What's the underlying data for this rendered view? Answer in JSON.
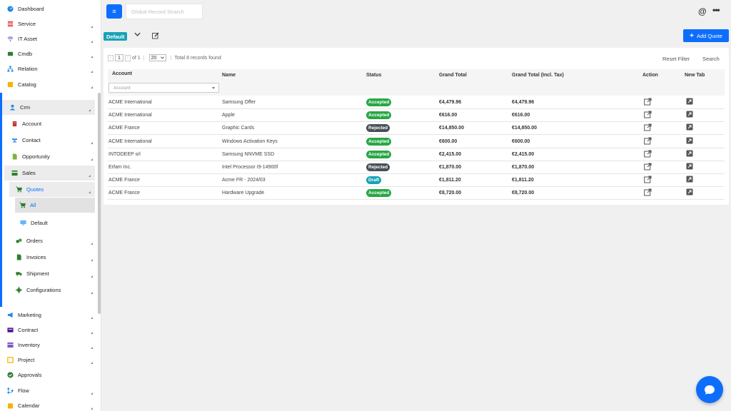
{
  "sidebar": {
    "items": [
      {
        "label": "Dashboard",
        "icon": "dashboard-icon",
        "color": "#1e88e5"
      },
      {
        "label": "Service",
        "icon": "service-icon",
        "color": "#e53935"
      },
      {
        "label": "IT Asset",
        "icon": "wifi-icon",
        "color": "#7e57c2"
      },
      {
        "label": "Cmdb",
        "icon": "cmdb-icon",
        "color": "#2e7d32"
      },
      {
        "label": "Relation",
        "icon": "sitemap-icon",
        "color": "#1e88e5"
      },
      {
        "label": "Catalog",
        "icon": "catalog-icon",
        "color": "#f4b400"
      },
      {
        "label": "Crm",
        "icon": "user-icon",
        "color": "#1e88e5"
      },
      {
        "label": "Account",
        "icon": "account-icon",
        "color": "#c0392b"
      },
      {
        "label": "Contact",
        "icon": "users-icon",
        "color": "#1e88e5"
      },
      {
        "label": "Opportunity",
        "icon": "file-icon",
        "color": "#7cb342"
      },
      {
        "label": "Sales",
        "icon": "sales-icon",
        "color": "#2e7d32"
      },
      {
        "label": "Quotes",
        "icon": "cart-icon",
        "color": "#2e7d32"
      },
      {
        "label": "All",
        "icon": "cart-icon",
        "color": "#2e7d32"
      },
      {
        "label": "Default",
        "icon": "monitor-icon",
        "color": "#64b5f6"
      },
      {
        "label": "Orders",
        "icon": "orders-icon",
        "color": "#2e7d32"
      },
      {
        "label": "Invoices",
        "icon": "invoice-icon",
        "color": "#2e7d32"
      },
      {
        "label": "Shipment",
        "icon": "truck-icon",
        "color": "#2e7d32"
      },
      {
        "label": "Configurations",
        "icon": "gear-icon",
        "color": "#2e7d32"
      },
      {
        "label": "Marketing",
        "icon": "megaphone-icon",
        "color": "#1e88e5"
      },
      {
        "label": "Contract",
        "icon": "contract-icon",
        "color": "#4a148c"
      },
      {
        "label": "Inventory",
        "icon": "inventory-icon",
        "color": "#7e57c2"
      },
      {
        "label": "Project",
        "icon": "project-icon",
        "color": "#f4b400"
      },
      {
        "label": "Approvals",
        "icon": "check-circle-icon",
        "color": "#2e7d32"
      },
      {
        "label": "Flow",
        "icon": "flow-icon",
        "color": "#1e88e5"
      },
      {
        "label": "Calendar",
        "icon": "calendar-icon",
        "color": "#f4b400"
      }
    ]
  },
  "header": {
    "search_placeholder": "Global Record Search",
    "at_symbol": "@",
    "more_symbol": "•••"
  },
  "toolbar": {
    "view_name": "Default",
    "add_label": "Add Quote"
  },
  "pager": {
    "page": "1",
    "of_label": "of 1",
    "page_size": "20",
    "total": "Total 8 records found",
    "reset_filter": "Reset Filter",
    "search": "Search"
  },
  "table": {
    "columns": [
      "Account",
      "Name",
      "Status",
      "Grand Total",
      "Grand Total (Incl. Tax)",
      "Action",
      "New Tab"
    ],
    "account_filter_placeholder": "Account",
    "rows": [
      {
        "account": "ACME International",
        "name": "Samsung Offer",
        "status": "Accepted",
        "grand_total": "€4,479.96",
        "grand_total_tax": "€4,479.96"
      },
      {
        "account": "ACME International",
        "name": "Apple",
        "status": "Accepted",
        "grand_total": "€616.00",
        "grand_total_tax": "€616.00"
      },
      {
        "account": "ACME France",
        "name": "Graphic Cards",
        "status": "Rejected",
        "grand_total": "€14,850.00",
        "grand_total_tax": "€14,850.00"
      },
      {
        "account": "ACME International",
        "name": "Windows Activation Keys",
        "status": "Accepted",
        "grand_total": "€600.00",
        "grand_total_tax": "€600.00"
      },
      {
        "account": "INTODEEP srl",
        "name": "Samsung NNVME SSD",
        "status": "Accepted",
        "grand_total": "€2,415.00",
        "grand_total_tax": "€2,415.00"
      },
      {
        "account": "Erfam Inc.",
        "name": "Intel Processor I9-14900f",
        "status": "Rejected",
        "grand_total": "€1,870.00",
        "grand_total_tax": "€1,870.00"
      },
      {
        "account": "ACME France",
        "name": "Acme FR - 2024/03",
        "status": "Draft",
        "grand_total": "€1,811.20",
        "grand_total_tax": "€1,811.20"
      },
      {
        "account": "ACME France",
        "name": "Hardware Upgrade",
        "status": "Accepted",
        "grand_total": "€8,720.00",
        "grand_total_tax": "€8,720.00"
      }
    ]
  },
  "colors": {
    "primary": "#0d6efd",
    "accepted": "#28a745",
    "rejected": "#495057",
    "draft": "#17a2b8",
    "view_badge": "#17a2b8"
  }
}
